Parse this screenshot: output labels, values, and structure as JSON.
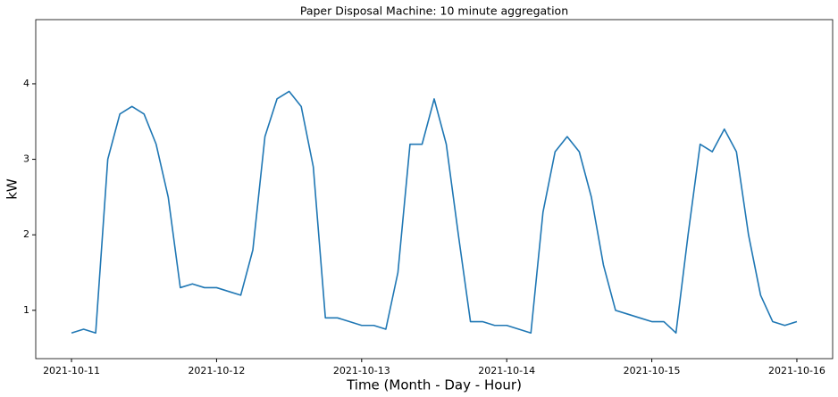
{
  "chart_data": {
    "type": "line",
    "title": "Paper Disposal Machine: 10 minute aggregation",
    "xlabel": "Time (Month - Day - Hour)",
    "ylabel": "kW",
    "x": [
      "2021-10-11 00:00",
      "2021-10-11 02:00",
      "2021-10-11 04:00",
      "2021-10-11 06:00",
      "2021-10-11 08:00",
      "2021-10-11 10:00",
      "2021-10-11 12:00",
      "2021-10-11 14:00",
      "2021-10-11 16:00",
      "2021-10-11 18:00",
      "2021-10-11 20:00",
      "2021-10-11 22:00",
      "2021-10-12 00:00",
      "2021-10-12 02:00",
      "2021-10-12 04:00",
      "2021-10-12 06:00",
      "2021-10-12 08:00",
      "2021-10-12 10:00",
      "2021-10-12 12:00",
      "2021-10-12 14:00",
      "2021-10-12 16:00",
      "2021-10-12 18:00",
      "2021-10-12 20:00",
      "2021-10-12 22:00",
      "2021-10-13 00:00",
      "2021-10-13 02:00",
      "2021-10-13 04:00",
      "2021-10-13 06:00",
      "2021-10-13 08:00",
      "2021-10-13 10:00",
      "2021-10-13 12:00",
      "2021-10-13 14:00",
      "2021-10-13 16:00",
      "2021-10-13 18:00",
      "2021-10-13 20:00",
      "2021-10-13 22:00",
      "2021-10-14 00:00",
      "2021-10-14 02:00",
      "2021-10-14 04:00",
      "2021-10-14 06:00",
      "2021-10-14 08:00",
      "2021-10-14 10:00",
      "2021-10-14 12:00",
      "2021-10-14 14:00",
      "2021-10-14 16:00",
      "2021-10-14 18:00",
      "2021-10-14 20:00",
      "2021-10-14 22:00",
      "2021-10-15 00:00",
      "2021-10-15 02:00",
      "2021-10-15 04:00",
      "2021-10-15 06:00",
      "2021-10-15 08:00",
      "2021-10-15 10:00",
      "2021-10-15 12:00",
      "2021-10-15 14:00",
      "2021-10-15 16:00",
      "2021-10-15 18:00",
      "2021-10-15 20:00",
      "2021-10-15 22:00",
      "2021-10-16 00:00"
    ],
    "series": [
      {
        "name": "kW",
        "color": "#1f77b4",
        "values": [
          0.7,
          0.75,
          0.7,
          3.0,
          3.6,
          3.7,
          3.6,
          3.2,
          2.5,
          1.3,
          1.35,
          1.3,
          1.3,
          1.25,
          1.2,
          1.8,
          3.3,
          3.8,
          3.9,
          3.7,
          2.9,
          0.9,
          0.9,
          0.85,
          0.8,
          0.8,
          0.75,
          1.5,
          3.2,
          3.2,
          3.8,
          3.2,
          2.0,
          0.85,
          0.85,
          0.8,
          0.8,
          0.75,
          0.7,
          2.3,
          3.1,
          3.3,
          3.1,
          2.5,
          1.6,
          1.0,
          0.95,
          0.9,
          0.85,
          0.85,
          0.7,
          2.0,
          3.2,
          3.1,
          3.4,
          3.1,
          2.0,
          1.2,
          0.85,
          0.8,
          0.85
        ]
      }
    ],
    "xlim": [
      "2021-10-10 18:05",
      "2021-10-16 05:55"
    ],
    "xticks": [
      "2021-10-11",
      "2021-10-12",
      "2021-10-13",
      "2021-10-14",
      "2021-10-15",
      "2021-10-16"
    ],
    "ylim": [
      0.36,
      4.85
    ],
    "yticks": [
      1,
      2,
      3,
      4
    ],
    "grid": false
  }
}
